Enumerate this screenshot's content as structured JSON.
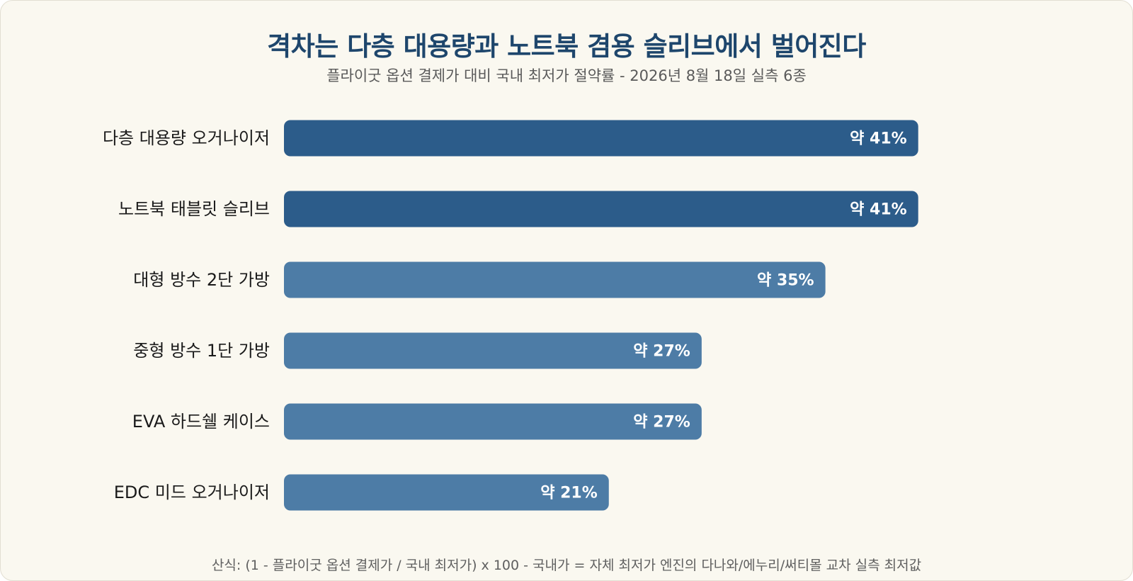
{
  "colors": {
    "background": "#faf8f0",
    "title": "#1e466c",
    "bar_highlight": "#2c5c8a",
    "bar_default": "#4d7ca6",
    "bar_label": "#ffffff",
    "category_label": "#1a1a1a"
  },
  "header": {
    "title": "격차는 다층 대용량과 노트북 겸용 슬리브에서 벌어진다",
    "subtitle": "플라이굿 옵션 결제가 대비 국내 최저가 절약률 - 2026년 8월 18일 실측 6종"
  },
  "chart_data": {
    "type": "bar",
    "orientation": "horizontal",
    "title": "격차는 다층 대용량과 노트북 겸용 슬리브에서 벌어진다",
    "subtitle": "플라이굿 옵션 결제가 대비 국내 최저가 절약률 - 2026년 8월 18일 실측 6종",
    "categories": [
      "다층 대용량 오거나이저",
      "노트북 태블릿 슬리브",
      "대형 방수 2단 가방",
      "중형 방수 1단 가방",
      "EVA 하드쉘 케이스",
      "EDC 미드 오거나이저"
    ],
    "values": [
      41,
      41,
      35,
      27,
      27,
      21
    ],
    "value_labels": [
      "약 41%",
      "약 41%",
      "약 35%",
      "약 27%",
      "약 27%",
      "약 21%"
    ],
    "highlighted": [
      true,
      true,
      false,
      false,
      false,
      false
    ],
    "unit": "%",
    "xlim": [
      0,
      52
    ],
    "grid": false,
    "legend": "none",
    "xlabel": "",
    "ylabel": ""
  },
  "footer": {
    "note": "산식: (1 - 플라이굿 옵션 결제가 / 국내 최저가) x 100 - 국내가 = 자체 최저가 엔진의 다나와/에누리/써티몰 교차 실측 최저값"
  }
}
